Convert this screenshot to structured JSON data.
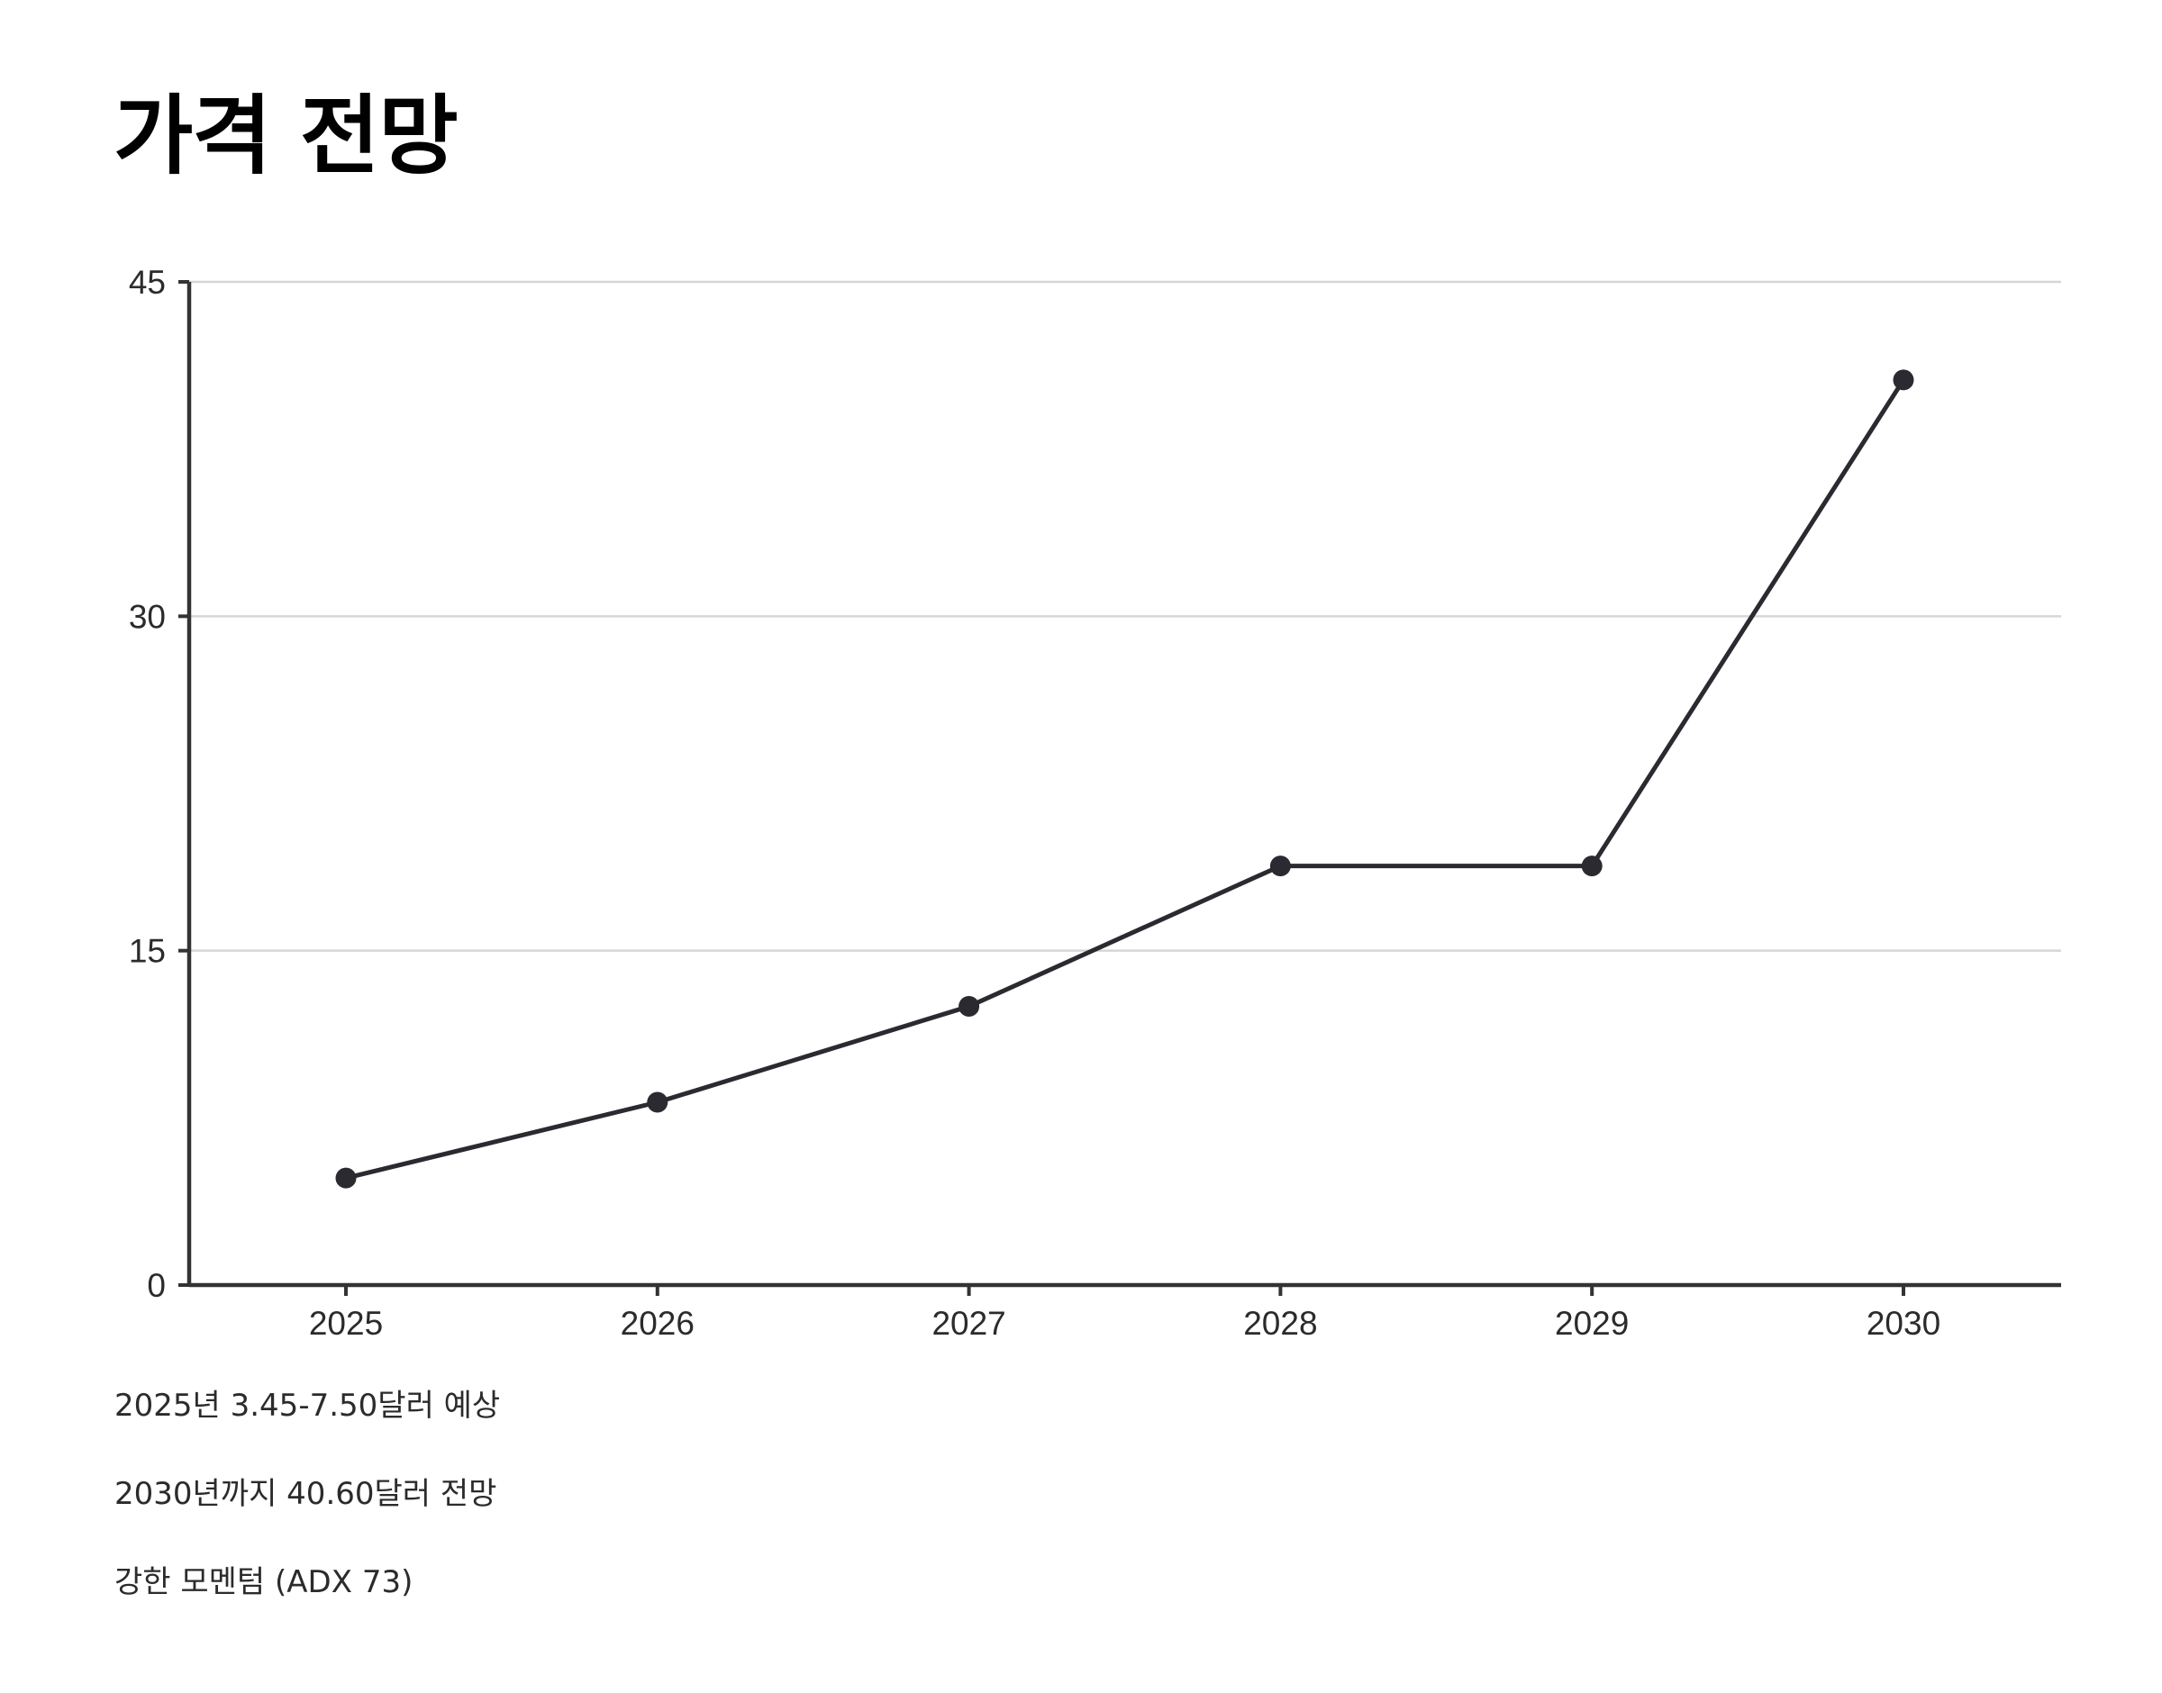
{
  "page": {
    "title": "가격 전망"
  },
  "notes": [
    "2025년 3.45-7.50달러 예상",
    "2030년까지 40.60달러 전망",
    "강한 모멘텀 (ADX 73)"
  ],
  "chart_data": {
    "type": "line",
    "title": "",
    "xlabel": "",
    "ylabel": "",
    "categories": [
      "2025",
      "2026",
      "2027",
      "2028",
      "2029",
      "2030"
    ],
    "series": [
      {
        "values": [
          4.8,
          8.2,
          12.5,
          18.8,
          18.8,
          40.6
        ]
      }
    ],
    "ylim": [
      0,
      45
    ],
    "yticks": [
      0,
      15,
      30,
      45
    ],
    "grid": true,
    "legend": "none",
    "colors": {
      "line": "#2a2a30",
      "axis": "#333333",
      "grid": "#d6d6d6",
      "text": "#2b2b2b"
    }
  }
}
